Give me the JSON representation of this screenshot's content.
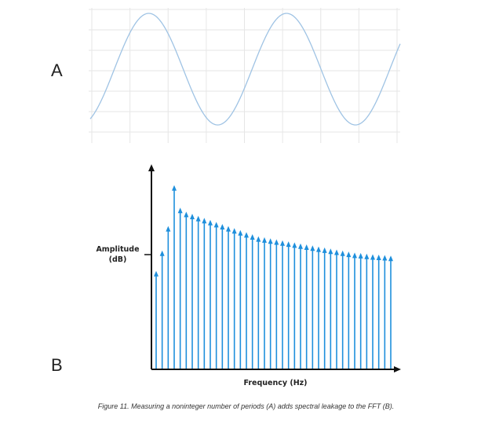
{
  "figure": {
    "panel_a_letter": "A",
    "panel_b_letter": "B",
    "caption": "Figure 11. Measuring a noninteger number of periods (A) adds spectral leakage to the FFT (B)."
  },
  "colors": {
    "sine": "#9fc3e4",
    "grid": "#e6e6e6",
    "bars": "#1e8fdc",
    "axis": "#111111"
  },
  "chart_data": [
    {
      "type": "line",
      "panel": "A",
      "title": "",
      "xlabel": "",
      "ylabel": "",
      "periods_shown": 2.25,
      "grid": true,
      "tick_labels": false
    },
    {
      "type": "bar",
      "panel": "B",
      "title": "",
      "xlabel": "Frequency (Hz)",
      "ylabel_line1": "Amplitude",
      "ylabel_line2": "(dB)",
      "ylim": [
        0,
        100
      ],
      "grid": false,
      "values": [
        47,
        57,
        69,
        89,
        78,
        76,
        75,
        74,
        73,
        72,
        71,
        70,
        69,
        68,
        67,
        66,
        65,
        64,
        63.5,
        63,
        62.5,
        62,
        61.5,
        61,
        60.5,
        60,
        59.5,
        59,
        58.5,
        58,
        57.5,
        57,
        56.5,
        56,
        55.8,
        55.5,
        55.2,
        55,
        54.8,
        54.5
      ]
    }
  ]
}
